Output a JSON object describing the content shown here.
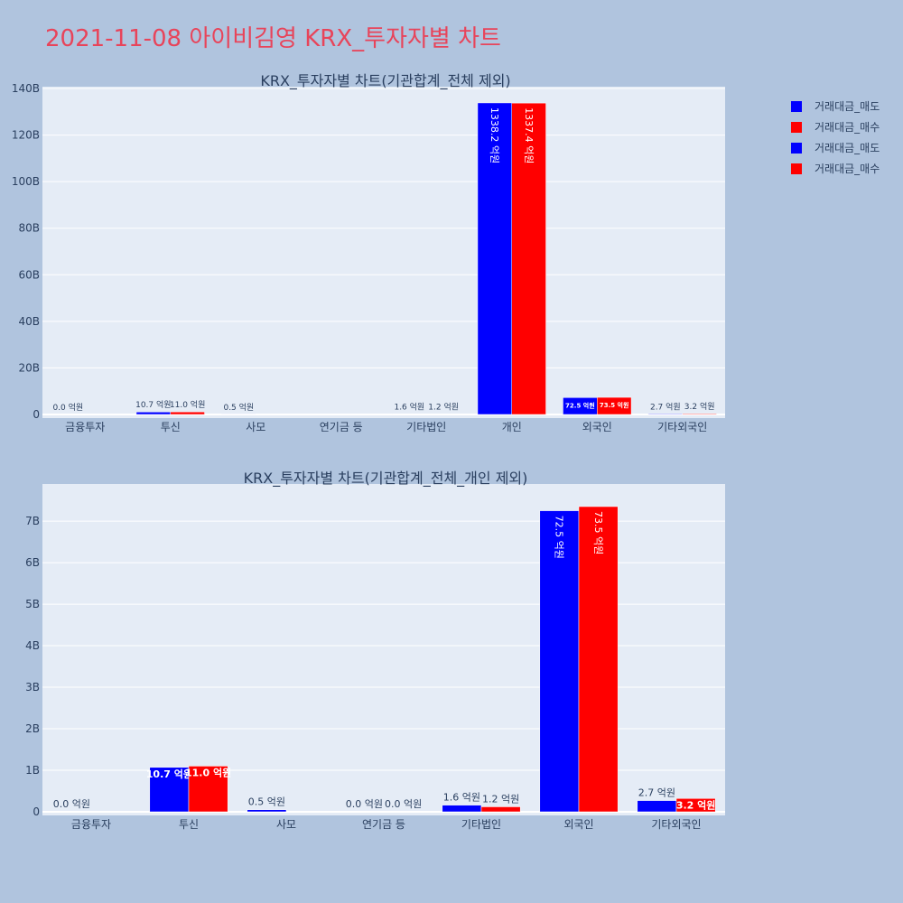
{
  "title": "2021-11-08 아이비김영 KRX_투자자별 차트",
  "legend": [
    {
      "label": "거래대금_매도",
      "color": "#0000ff"
    },
    {
      "label": "거래대금_매수",
      "color": "#ff0000"
    },
    {
      "label": "거래대금_매도",
      "color": "#0000ff"
    },
    {
      "label": "거래대금_매수",
      "color": "#ff0000"
    }
  ],
  "chart_data": [
    {
      "type": "bar",
      "title": "KRX_투자자별 차트(기관합계_전체 제외)",
      "categories": [
        "금융투자",
        "투신",
        "사모",
        "연기금 등",
        "기타법인",
        "개인",
        "외국인",
        "기타외국인"
      ],
      "ylim": [
        0,
        140
      ],
      "yticks": [
        0,
        20,
        40,
        60,
        80,
        100,
        120,
        140
      ],
      "ytick_labels": [
        "0",
        "20B",
        "40B",
        "60B",
        "80B",
        "100B",
        "120B",
        "140B"
      ],
      "series": [
        {
          "name": "거래대금_매도",
          "color": "#0000ff",
          "values": [
            0.0,
            1.07,
            0.05,
            0,
            0.16,
            133.82,
            7.25,
            0.27
          ],
          "labels": [
            "0.0 억원",
            "10.7 억원",
            "0.5 억원",
            "",
            "1.6 억원",
            "1338.2 억원",
            "72.5 억원",
            "2.7 억원"
          ]
        },
        {
          "name": "거래대금_매수",
          "color": "#ff0000",
          "values": [
            0,
            1.1,
            0,
            0,
            0.12,
            133.74,
            7.35,
            0.32
          ],
          "labels": [
            "",
            "11.0 억원",
            "",
            "",
            "1.2 억원",
            "1337.4 억원",
            "73.5 억원",
            "3.2 억원"
          ]
        }
      ]
    },
    {
      "type": "bar",
      "title": "KRX_투자자별 차트(기관합계_전체_개인 제외)",
      "categories": [
        "금융투자",
        "투신",
        "사모",
        "연기금 등",
        "기타법인",
        "외국인",
        "기타외국인"
      ],
      "ylim": [
        0,
        7.85
      ],
      "yticks": [
        0,
        1,
        2,
        3,
        4,
        5,
        6,
        7
      ],
      "ytick_labels": [
        "0",
        "1B",
        "2B",
        "3B",
        "4B",
        "5B",
        "6B",
        "7B"
      ],
      "series": [
        {
          "name": "거래대금_매도",
          "color": "#0000ff",
          "values": [
            0.0,
            1.07,
            0.05,
            0.0,
            0.16,
            7.25,
            0.27
          ],
          "labels": [
            "0.0 억원",
            "10.7 억원",
            "0.5 억원",
            "0.0 억원",
            "1.6 억원",
            "72.5 억원",
            "2.7 억원"
          ]
        },
        {
          "name": "거래대금_매수",
          "color": "#ff0000",
          "values": [
            0,
            1.1,
            0,
            0.0,
            0.12,
            7.35,
            0.32
          ],
          "labels": [
            "",
            "11.0 억원",
            "",
            "0.0 억원",
            "1.2 억원",
            "73.5 억원",
            "3.2 억원"
          ]
        }
      ]
    }
  ]
}
